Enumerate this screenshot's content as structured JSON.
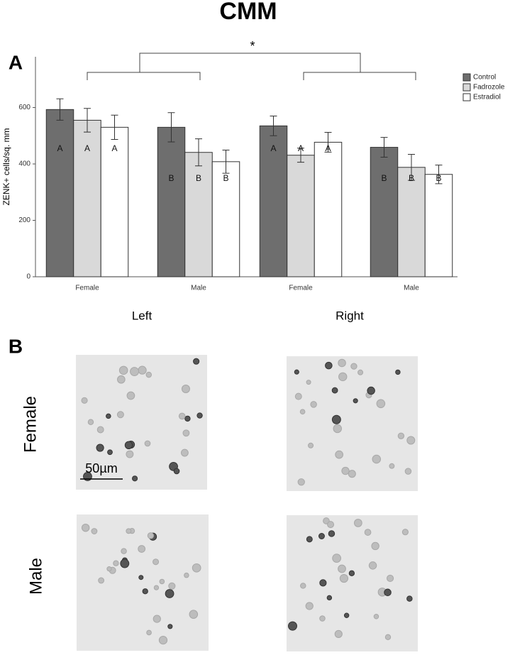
{
  "chart_data": {
    "type": "bar",
    "title": "CMM",
    "ylabel": "ZENK+ cells/sq. mm",
    "categories": [
      "Female",
      "Male",
      "Female",
      "Male"
    ],
    "group_labels": [
      "Left",
      "Right"
    ],
    "annotation": "*",
    "series": [
      {
        "name": "Control",
        "color": "#6e6e6e",
        "values": [
          593,
          530,
          535,
          459
        ],
        "errors": [
          38,
          52,
          35,
          35
        ],
        "letters": [
          "A",
          "B",
          "A",
          "B"
        ]
      },
      {
        "name": "Fadrozole",
        "color": "#d9d9d9",
        "values": [
          555,
          441,
          431,
          388
        ],
        "errors": [
          42,
          48,
          25,
          46
        ],
        "letters": [
          "A",
          "B",
          "A",
          "B"
        ]
      },
      {
        "name": "Estradiol",
        "color": "#ffffff",
        "values": [
          530,
          408,
          477,
          363
        ],
        "errors": [
          43,
          41,
          35,
          33
        ],
        "letters": [
          "A",
          "B",
          "A",
          "B"
        ]
      }
    ],
    "ylim": [
      0,
      780
    ],
    "yticks": [
      0,
      200,
      400,
      600
    ],
    "legend": "top-right"
  },
  "figure": {
    "panel_a": "A",
    "panel_b": "B",
    "rows": [
      "Female",
      "Male"
    ],
    "scale_bar": "50µm"
  }
}
